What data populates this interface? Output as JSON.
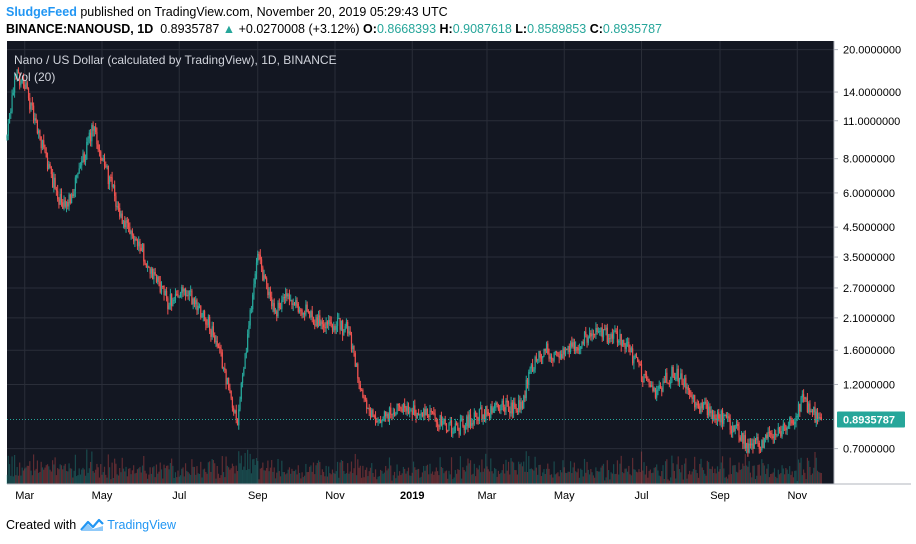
{
  "header": {
    "publisher": "SludgeFeed",
    "published_text": "published on TradingView.com, November 20, 2019 05:29:43 UTC",
    "symbol": "BINANCE:NANOUSD, 1D",
    "last_price": "0.8935787",
    "change_arrow": "▲",
    "change": "+0.0270008 (+3.12%)",
    "o_label": "O:",
    "o_value": "0.8668393",
    "h_label": "H:",
    "h_value": "0.9087618",
    "l_label": "L:",
    "l_value": "0.8589853",
    "c_label": "C:",
    "c_value": "0.8935787"
  },
  "footer": {
    "created_with": "Created with",
    "brand": "TradingView"
  },
  "colors": {
    "background": "#131722",
    "up": "#26a69a",
    "down": "#ef5350",
    "price_line": "#26a69a",
    "grid": "#2a2e39"
  },
  "chart_data": {
    "type": "candlestick",
    "title": "Nano / US Dollar (calculated by TradingView), 1D, BINANCE",
    "indicator": "Vol (20)",
    "y_scale": "log",
    "ylim": [
      0.52,
      21.5
    ],
    "y_ticks": [
      20,
      14,
      11,
      8,
      6,
      4.5,
      3.5,
      2.7,
      2.1,
      1.6,
      1.2,
      0.7
    ],
    "y_tick_labels": [
      "20.0000000",
      "14.0000000",
      "11.0000000",
      "8.0000000",
      "6.0000000",
      "4.5000000",
      "3.5000000",
      "2.7000000",
      "2.1000000",
      "1.6000000",
      "1.2000000",
      "0.7000000"
    ],
    "x_labels": [
      "Mar",
      "May",
      "Jul",
      "Sep",
      "Nov",
      "2019",
      "Mar",
      "May",
      "Jul",
      "Sep",
      "Nov"
    ],
    "x_label_dates": [
      "2018-03-01",
      "2018-05-01",
      "2018-07-01",
      "2018-09-01",
      "2018-11-01",
      "2019-01-01",
      "2019-03-01",
      "2019-05-01",
      "2019-07-01",
      "2019-09-01",
      "2019-11-01"
    ],
    "x_start": "2018-02-15",
    "x_end": "2019-11-30",
    "current_price": 0.8935787,
    "current_price_label": "0.8935787",
    "approx_close_path": [
      [
        "2018-02-15",
        9.5
      ],
      [
        "2018-02-22",
        16.5
      ],
      [
        "2018-03-02",
        14.5
      ],
      [
        "2018-03-10",
        10.5
      ],
      [
        "2018-03-18",
        8.0
      ],
      [
        "2018-03-26",
        6.0
      ],
      [
        "2018-04-02",
        5.2
      ],
      [
        "2018-04-10",
        6.5
      ],
      [
        "2018-04-18",
        8.5
      ],
      [
        "2018-04-24",
        10.3
      ],
      [
        "2018-05-01",
        8.0
      ],
      [
        "2018-05-08",
        6.5
      ],
      [
        "2018-05-15",
        5.0
      ],
      [
        "2018-05-22",
        4.3
      ],
      [
        "2018-05-30",
        4.0
      ],
      [
        "2018-06-08",
        3.1
      ],
      [
        "2018-06-15",
        2.8
      ],
      [
        "2018-06-22",
        2.4
      ],
      [
        "2018-07-01",
        2.6
      ],
      [
        "2018-07-10",
        2.5
      ],
      [
        "2018-07-20",
        2.2
      ],
      [
        "2018-07-28",
        1.8
      ],
      [
        "2018-08-05",
        1.4
      ],
      [
        "2018-08-12",
        1.0
      ],
      [
        "2018-08-16",
        0.9
      ],
      [
        "2018-08-22",
        1.5
      ],
      [
        "2018-08-28",
        2.6
      ],
      [
        "2018-09-01",
        3.5
      ],
      [
        "2018-09-08",
        2.7
      ],
      [
        "2018-09-15",
        2.2
      ],
      [
        "2018-09-22",
        2.5
      ],
      [
        "2018-10-01",
        2.3
      ],
      [
        "2018-10-10",
        2.2
      ],
      [
        "2018-10-20",
        2.05
      ],
      [
        "2018-11-01",
        2.0
      ],
      [
        "2018-11-12",
        1.9
      ],
      [
        "2018-11-18",
        1.4
      ],
      [
        "2018-11-25",
        1.0
      ],
      [
        "2018-12-05",
        0.85
      ],
      [
        "2018-12-15",
        0.95
      ],
      [
        "2018-12-25",
        1.0
      ],
      [
        "2019-01-05",
        0.95
      ],
      [
        "2019-01-20",
        0.9
      ],
      [
        "2019-02-05",
        0.82
      ],
      [
        "2019-02-15",
        0.9
      ],
      [
        "2019-03-01",
        0.95
      ],
      [
        "2019-03-15",
        1.0
      ],
      [
        "2019-03-28",
        1.0
      ],
      [
        "2019-04-05",
        1.4
      ],
      [
        "2019-04-15",
        1.6
      ],
      [
        "2019-04-25",
        1.55
      ],
      [
        "2019-05-05",
        1.6
      ],
      [
        "2019-05-15",
        1.75
      ],
      [
        "2019-05-25",
        1.9
      ],
      [
        "2019-06-05",
        1.8
      ],
      [
        "2019-06-15",
        1.75
      ],
      [
        "2019-06-25",
        1.5
      ],
      [
        "2019-07-05",
        1.2
      ],
      [
        "2019-07-12",
        1.1
      ],
      [
        "2019-07-20",
        1.25
      ],
      [
        "2019-07-28",
        1.35
      ],
      [
        "2019-08-05",
        1.2
      ],
      [
        "2019-08-15",
        1.0
      ],
      [
        "2019-08-25",
        0.95
      ],
      [
        "2019-09-05",
        0.9
      ],
      [
        "2019-09-15",
        0.8
      ],
      [
        "2019-09-25",
        0.7
      ],
      [
        "2019-10-05",
        0.75
      ],
      [
        "2019-10-15",
        0.8
      ],
      [
        "2019-10-25",
        0.85
      ],
      [
        "2019-11-05",
        1.05
      ],
      [
        "2019-11-12",
        0.95
      ],
      [
        "2019-11-20",
        0.8935787
      ]
    ]
  }
}
